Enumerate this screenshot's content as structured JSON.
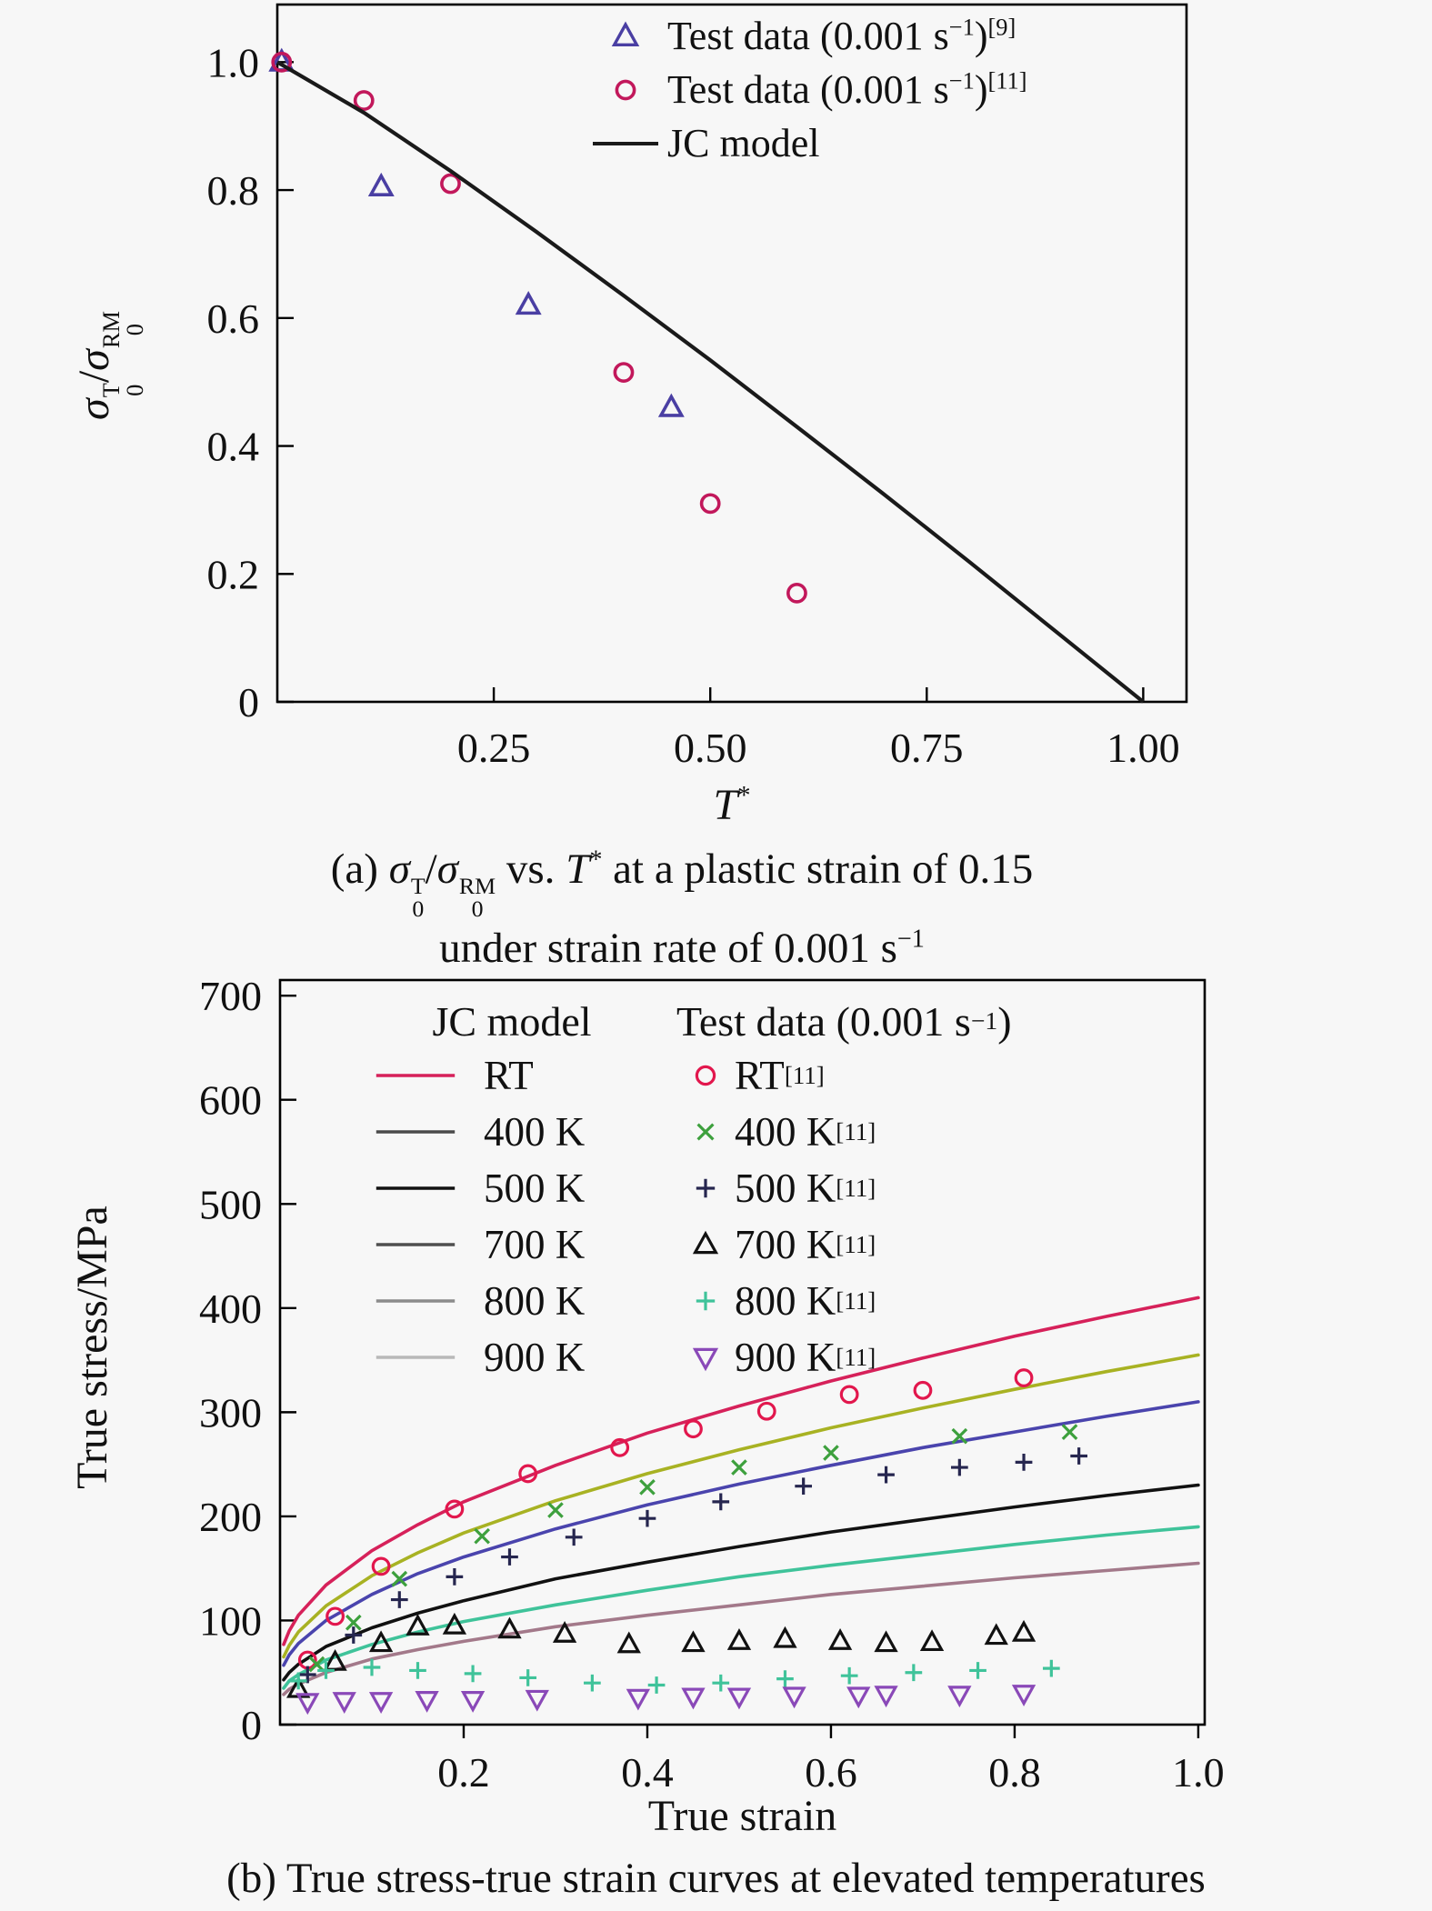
{
  "page": {
    "bg": "#f7f7f7",
    "frame_color": "#000000"
  },
  "chart_data": [
    {
      "id": "a",
      "type": "scatter",
      "xlabel_html": "<i>T</i><sup>*</sup>",
      "ylabel_html": "<i>σ</i><span class=\"ss\"><span class=\"u\">T</span><span class=\"d\">0</span></span>/<i>σ</i><span class=\"ss\"><span class=\"u\">RM</span><span class=\"d\">0</span></span>",
      "xlim": [
        0,
        1.05
      ],
      "ylim": [
        0,
        1.09
      ],
      "x_ticks": [
        {
          "v": 0.25,
          "label": "0.25"
        },
        {
          "v": 0.5,
          "label": "0.50"
        },
        {
          "v": 0.75,
          "label": "0.75"
        },
        {
          "v": 1.0,
          "label": "1.00"
        }
      ],
      "y_ticks": [
        {
          "v": 1.0,
          "label": "1.0"
        },
        {
          "v": 0.8,
          "label": "0.8"
        },
        {
          "v": 0.6,
          "label": "0.6"
        },
        {
          "v": 0.4,
          "label": "0.4"
        },
        {
          "v": 0.2,
          "label": "0.2"
        },
        {
          "v": 0,
          "label": "0"
        }
      ],
      "legend": [
        {
          "marker": "triangle-up",
          "color": "#4a3fa3",
          "label_html": "Test data (0.001 s<sup>−1</sup>)<sup>[9]</sup>"
        },
        {
          "marker": "circle",
          "color": "#c2185b",
          "label_html": "Test data (0.001 s<sup>−1</sup>)<sup>[11]</sup>"
        },
        {
          "marker": "line",
          "color": "#1a1a1a",
          "label_html": "JC model"
        }
      ],
      "series": [
        {
          "name": "Test data (0.001 s-1) ref 9",
          "kind": "markers",
          "marker": "triangle-up",
          "color": "#4a3fa3",
          "points": [
            [
              0.005,
              1.0
            ],
            [
              0.12,
              0.805
            ],
            [
              0.29,
              0.62
            ],
            [
              0.455,
              0.46
            ]
          ]
        },
        {
          "name": "Test data (0.001 s-1) ref 11",
          "kind": "markers",
          "marker": "circle",
          "color": "#c2185b",
          "points": [
            [
              0.005,
              1.0
            ],
            [
              0.1,
              0.94
            ],
            [
              0.2,
              0.81
            ],
            [
              0.4,
              0.515
            ],
            [
              0.5,
              0.31
            ],
            [
              0.6,
              0.17
            ]
          ]
        },
        {
          "name": "JC model",
          "kind": "line",
          "color": "#1a1a1a",
          "points": [
            [
              0,
              1.0
            ],
            [
              0.1,
              0.921
            ],
            [
              0.2,
              0.83
            ],
            [
              0.3,
              0.734
            ],
            [
              0.4,
              0.635
            ],
            [
              0.5,
              0.534
            ],
            [
              0.6,
              0.43
            ],
            [
              0.7,
              0.325
            ],
            [
              0.8,
              0.218
            ],
            [
              0.9,
              0.109
            ],
            [
              1.0,
              0.0
            ]
          ]
        }
      ],
      "caption_lines_html": [
        "(a) <i>σ</i><span class=\"ss\"><span class=\"u\">T</span><span class=\"d\">0</span></span>/<i>σ</i><span class=\"ss\"><span class=\"u\">RM</span><span class=\"d\">0</span></span> vs. <i>T</i><sup>*</sup> at a plastic strain of 0.15",
        "under strain rate of 0.001 s<sup>−1</sup>"
      ]
    },
    {
      "id": "b",
      "type": "line+scatter",
      "xlabel": "True strain",
      "ylabel": "True stress/MPa",
      "xlim": [
        0,
        1.007
      ],
      "ylim": [
        0,
        715
      ],
      "x_ticks": [
        {
          "v": 0.2,
          "label": "0.2"
        },
        {
          "v": 0.4,
          "label": "0.4"
        },
        {
          "v": 0.6,
          "label": "0.6"
        },
        {
          "v": 0.8,
          "label": "0.8"
        },
        {
          "v": 1.0,
          "label": "1.0"
        }
      ],
      "y_ticks": [
        {
          "v": 700,
          "label": "700"
        },
        {
          "v": 600,
          "label": "600"
        },
        {
          "v": 500,
          "label": "500"
        },
        {
          "v": 400,
          "label": "400"
        },
        {
          "v": 300,
          "label": "300"
        },
        {
          "v": 200,
          "label": "200"
        },
        {
          "v": 100,
          "label": "100"
        },
        {
          "v": 0,
          "label": "0"
        }
      ],
      "legend_headers": [
        "JC model",
        "Test data (0.001 s<sup>−1</sup>)"
      ],
      "curve_strains": [
        0.004,
        0.01,
        0.02,
        0.05,
        0.1,
        0.15,
        0.2,
        0.3,
        0.4,
        0.5,
        0.6,
        0.7,
        0.8,
        0.9,
        1.0
      ],
      "curves": [
        {
          "name": "RT",
          "label_html": "RT",
          "color": "#d6215a",
          "legend_color": "#d6215a",
          "values": [
            77,
            90,
            105,
            134,
            167,
            192,
            214,
            249,
            280,
            306,
            330,
            352,
            373,
            392,
            410
          ]
        },
        {
          "name": "400 K",
          "label_html": "400 K",
          "color": "#a8b223",
          "legend_color": "#4b4b4b",
          "values": [
            65,
            76,
            89,
            114,
            143,
            165,
            184,
            215,
            241,
            264,
            285,
            304,
            322,
            339,
            355
          ]
        },
        {
          "name": "500 K",
          "label_html": "500 K",
          "color": "#4a44ad",
          "legend_color": "#111111",
          "values": [
            57,
            67,
            78,
            100,
            125,
            145,
            161,
            188,
            211,
            231,
            249,
            266,
            281,
            296,
            310
          ]
        },
        {
          "name": "700 K",
          "label_html": "700 K",
          "color": "#111111",
          "legend_color": "#4f4f4f",
          "values": [
            43,
            50,
            58,
            75,
            93,
            107,
            119,
            140,
            156,
            171,
            185,
            197,
            209,
            220,
            230
          ]
        },
        {
          "name": "800 K",
          "label_html": "800 K",
          "color": "#3fc39a",
          "legend_color": "#8b8b8b",
          "values": [
            35,
            42,
            48,
            62,
            77,
            89,
            99,
            115,
            129,
            142,
            153,
            163,
            173,
            182,
            190
          ]
        },
        {
          "name": "900 K",
          "label_html": "900 K",
          "color": "#a3798a",
          "legend_color": "#b9b9b9",
          "values": [
            29,
            34,
            39,
            50,
            63,
            72,
            80,
            94,
            105,
            115,
            125,
            133,
            141,
            148,
            155
          ]
        }
      ],
      "markers": [
        {
          "name": "RT ref 11",
          "label_html": "RT<sup>[11]</sup>",
          "marker": "circle",
          "color": "#e2174d",
          "points": [
            [
              0.03,
              62
            ],
            [
              0.06,
              104
            ],
            [
              0.11,
              152
            ],
            [
              0.19,
              207
            ],
            [
              0.27,
              241
            ],
            [
              0.37,
              266
            ],
            [
              0.45,
              284
            ],
            [
              0.53,
              301
            ],
            [
              0.62,
              317
            ],
            [
              0.7,
              321
            ],
            [
              0.81,
              333
            ]
          ]
        },
        {
          "name": "400 K ref 11",
          "label_html": "400 K<sup>[11]</sup>",
          "marker": "x",
          "color": "#3da03d",
          "points": [
            [
              0.04,
              58
            ],
            [
              0.08,
              98
            ],
            [
              0.13,
              140
            ],
            [
              0.22,
              181
            ],
            [
              0.3,
              206
            ],
            [
              0.4,
              228
            ],
            [
              0.5,
              247
            ],
            [
              0.6,
              261
            ],
            [
              0.74,
              277
            ],
            [
              0.86,
              281
            ]
          ]
        },
        {
          "name": "500 K ref 11",
          "label_html": "500 K<sup>[11]</sup>",
          "marker": "plus",
          "color": "#26264f",
          "points": [
            [
              0.03,
              48
            ],
            [
              0.08,
              86
            ],
            [
              0.13,
              120
            ],
            [
              0.19,
              142
            ],
            [
              0.25,
              161
            ],
            [
              0.32,
              180
            ],
            [
              0.4,
              198
            ],
            [
              0.48,
              214
            ],
            [
              0.57,
              229
            ],
            [
              0.66,
              240
            ],
            [
              0.74,
              247
            ],
            [
              0.81,
              252
            ],
            [
              0.87,
              258
            ]
          ]
        },
        {
          "name": "700 K ref 11",
          "label_html": "700 K<sup>[11]</sup>",
          "marker": "triangle-up",
          "color": "#111111",
          "points": [
            [
              0.02,
              34
            ],
            [
              0.06,
              60
            ],
            [
              0.11,
              78
            ],
            [
              0.15,
              94
            ],
            [
              0.19,
              95
            ],
            [
              0.25,
              91
            ],
            [
              0.31,
              87
            ],
            [
              0.38,
              77
            ],
            [
              0.45,
              78
            ],
            [
              0.5,
              80
            ],
            [
              0.55,
              82
            ],
            [
              0.61,
              80
            ],
            [
              0.66,
              78
            ],
            [
              0.71,
              79
            ],
            [
              0.78,
              85
            ],
            [
              0.81,
              88
            ]
          ]
        },
        {
          "name": "800 K ref 11",
          "label_html": "800 K<sup>[11]</sup>",
          "marker": "plus",
          "color": "#3fc39a",
          "points": [
            [
              0.02,
              42
            ],
            [
              0.05,
              52
            ],
            [
              0.1,
              55
            ],
            [
              0.15,
              52
            ],
            [
              0.21,
              49
            ],
            [
              0.27,
              45
            ],
            [
              0.34,
              40
            ],
            [
              0.41,
              38
            ],
            [
              0.48,
              40
            ],
            [
              0.55,
              44
            ],
            [
              0.62,
              47
            ],
            [
              0.69,
              50
            ],
            [
              0.76,
              52
            ],
            [
              0.84,
              54
            ]
          ]
        },
        {
          "name": "900 K ref 11",
          "label_html": "900 K<sup>[11]</sup>",
          "marker": "triangle-down",
          "color": "#8a49b8",
          "points": [
            [
              0.03,
              22
            ],
            [
              0.07,
              23
            ],
            [
              0.11,
              23
            ],
            [
              0.16,
              24
            ],
            [
              0.21,
              24
            ],
            [
              0.28,
              25
            ],
            [
              0.39,
              26
            ],
            [
              0.45,
              27
            ],
            [
              0.5,
              27
            ],
            [
              0.56,
              28
            ],
            [
              0.63,
              28
            ],
            [
              0.66,
              29
            ],
            [
              0.74,
              29
            ],
            [
              0.81,
              30
            ]
          ]
        }
      ],
      "caption_html": "(b) True stress-true strain curves at elevated temperatures"
    }
  ]
}
